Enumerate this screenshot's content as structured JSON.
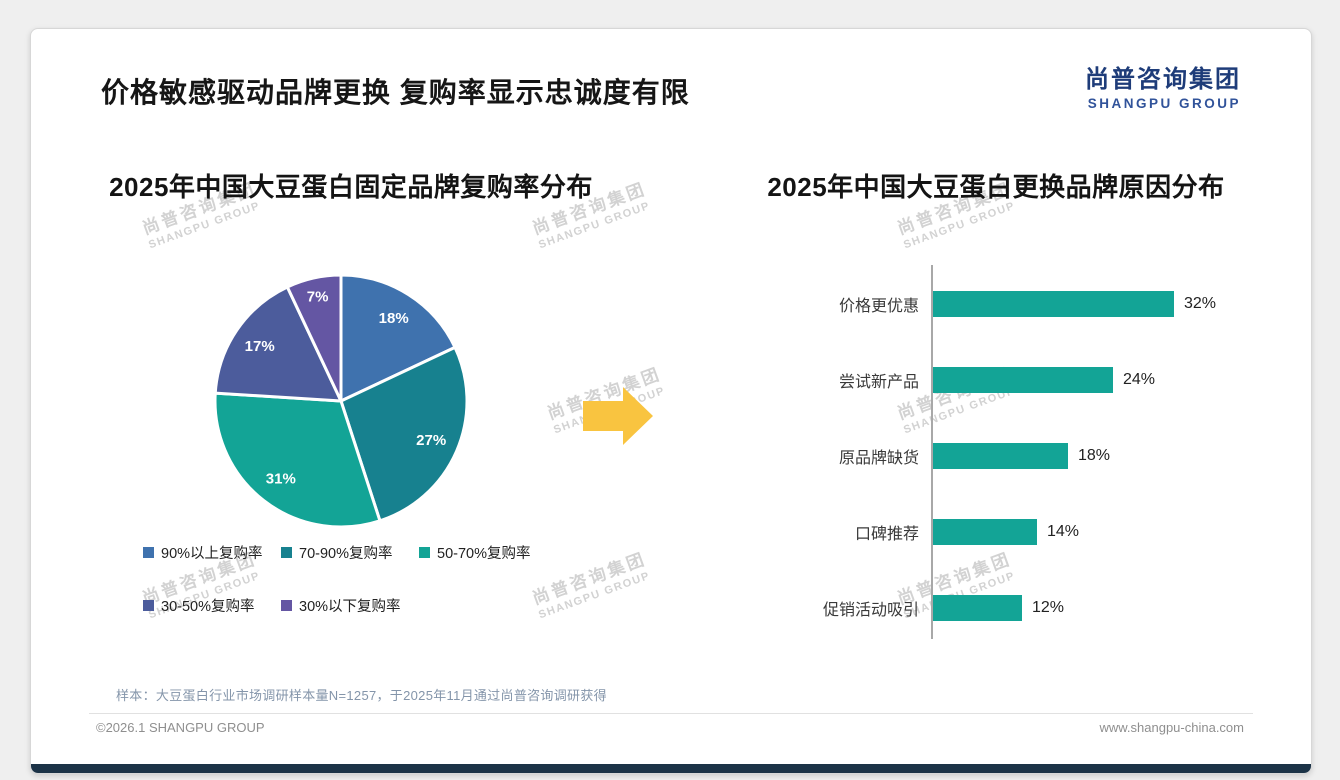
{
  "page": {
    "title": "价格敏感驱动品牌更换 复购率显示忠诚度有限",
    "logo": {
      "cn": "尚普咨询集团",
      "en": "SHANGPU GROUP"
    },
    "watermark": {
      "cn": "尚普咨询集团",
      "en": "SHANGPU GROUP"
    },
    "note": "样本：大豆蛋白行业市场调研样本量N=1257，于2025年11月通过尚普咨询调研获得",
    "footer": {
      "left": "©2026.1 SHANGPU GROUP",
      "right": "www.shangpu-china.com"
    }
  },
  "ui": {
    "arrow_color": "#f9c440",
    "brand_navy": "#1e3c79",
    "axis_color": "#a8a8a8"
  },
  "chart_data": [
    {
      "type": "pie",
      "title": "2025年中国大豆蛋白固定品牌复购率分布",
      "labels": [
        "90%以上复购率",
        "70-90%复购率",
        "50-70%复购率",
        "30-50%复购率",
        "30%以下复购率"
      ],
      "values": [
        18,
        27,
        31,
        17,
        7
      ],
      "data_labels": [
        "18%",
        "27%",
        "31%",
        "17%",
        "7%"
      ],
      "colors": [
        "#3f72ae",
        "#17818f",
        "#13a496",
        "#4c5c9c",
        "#6456a3"
      ],
      "legend_position": "bottom",
      "start_angle_deg": 0,
      "direction": "clockwise"
    },
    {
      "type": "bar",
      "orientation": "horizontal",
      "title": "2025年中国大豆蛋白更换品牌原因分布",
      "categories": [
        "价格更优惠",
        "尝试新产品",
        "原品牌缺货",
        "口碑推荐",
        "促销活动吸引"
      ],
      "values": [
        32,
        24,
        18,
        14,
        12
      ],
      "value_labels": [
        "32%",
        "24%",
        "18%",
        "14%",
        "12%"
      ],
      "bar_color": "#13a496",
      "xlim": [
        0,
        35
      ],
      "grid": false,
      "legend_position": "none"
    }
  ]
}
